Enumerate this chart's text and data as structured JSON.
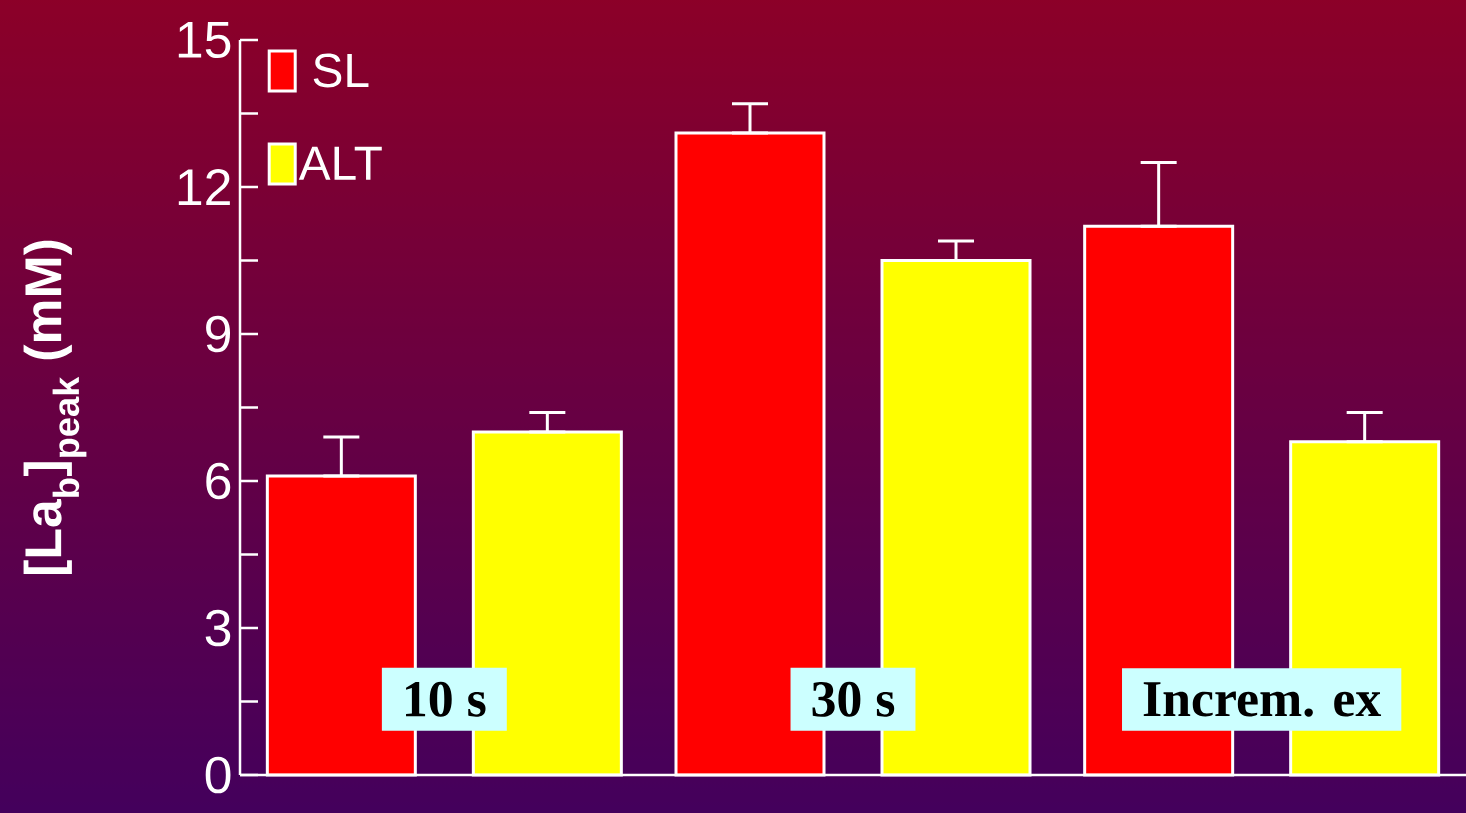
{
  "chart_data": {
    "type": "bar",
    "ylabel": "[La$_{b}$]$_{peak}$ (mM)",
    "categories": [
      "10 s",
      "30 s",
      "Increm. ex"
    ],
    "series": [
      {
        "name": "SL",
        "color": "#ff0000",
        "values": [
          6.1,
          13.1,
          11.2
        ],
        "errors": [
          [
            6.1,
            6.9
          ],
          [
            13.1,
            13.7
          ],
          [
            11.2,
            12.5
          ]
        ]
      },
      {
        "name": "ALT",
        "color": "#ffff00",
        "values": [
          7.0,
          10.5,
          6.8
        ],
        "errors": [
          [
            7.0,
            7.4
          ],
          [
            10.5,
            10.9
          ],
          [
            6.8,
            7.4
          ]
        ]
      }
    ],
    "ylim": [
      0,
      15
    ],
    "yticks": [
      0,
      3,
      6,
      9,
      12,
      15
    ],
    "legend": "top left"
  }
}
